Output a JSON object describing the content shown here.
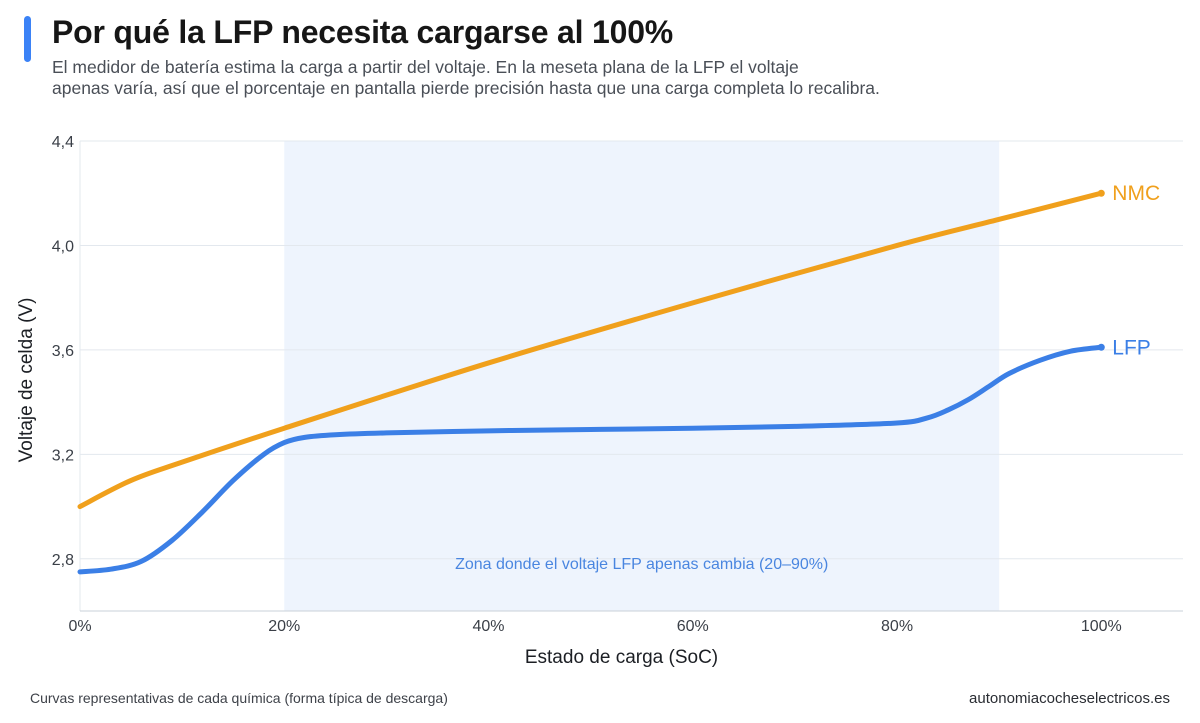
{
  "header": {
    "title": "Por qué la LFP necesita cargarse al 100%",
    "subtitle_line1": "El medidor de batería estima la carga a partir del voltaje. En la meseta plana de la LFP el voltaje",
    "subtitle_line2": "apenas varía, así que el porcentaje en pantalla pierde precisión hasta que una carga completa lo recalibra."
  },
  "footer": {
    "note": "Curvas representativas de cada química (forma típica de descarga)",
    "source": "autonomiacocheselectricos.es"
  },
  "colors": {
    "accent": "#3b82f6",
    "nmc": "#f0a01c",
    "lfp": "#3b7fe6",
    "plateau_band": "#eef4fd",
    "grid": "#e3e8ee"
  },
  "chart_data": {
    "type": "line",
    "xlabel": "Estado de carga (SoC)",
    "ylabel": "Voltaje de celda (V)",
    "xlim": [
      0,
      108
    ],
    "ylim": [
      2.6,
      4.4
    ],
    "x_ticks": [
      0,
      20,
      40,
      60,
      80,
      100
    ],
    "x_tick_labels": [
      "0%",
      "20%",
      "40%",
      "60%",
      "80%",
      "100%"
    ],
    "y_ticks": [
      2.8,
      3.2,
      3.6,
      4.0,
      4.4
    ],
    "y_tick_labels": [
      "2,8",
      "3,2",
      "3,6",
      "4,0",
      "4,4"
    ],
    "grid": "horizontal",
    "series": [
      {
        "name": "NMC",
        "color": "#f0a01c",
        "x": [
          0,
          5,
          10,
          20,
          40,
          60,
          80,
          90,
          100
        ],
        "y": [
          3.0,
          3.1,
          3.17,
          3.3,
          3.55,
          3.78,
          4.0,
          4.1,
          4.2
        ]
      },
      {
        "name": "LFP",
        "color": "#3b7fe6",
        "x": [
          0,
          3,
          6,
          9,
          12,
          15,
          18,
          20,
          22,
          25,
          30,
          40,
          50,
          60,
          70,
          80,
          83,
          85,
          87,
          89,
          91,
          94,
          97,
          100
        ],
        "y": [
          2.75,
          2.76,
          2.79,
          2.87,
          2.98,
          3.1,
          3.2,
          3.245,
          3.265,
          3.275,
          3.282,
          3.29,
          3.295,
          3.3,
          3.307,
          3.32,
          3.34,
          3.37,
          3.41,
          3.46,
          3.51,
          3.56,
          3.595,
          3.61
        ]
      }
    ],
    "annotations": [
      {
        "type": "band",
        "x_start": 20,
        "x_end": 90,
        "label": "Zona donde el voltaje LFP apenas cambia (20–90%)"
      }
    ]
  }
}
